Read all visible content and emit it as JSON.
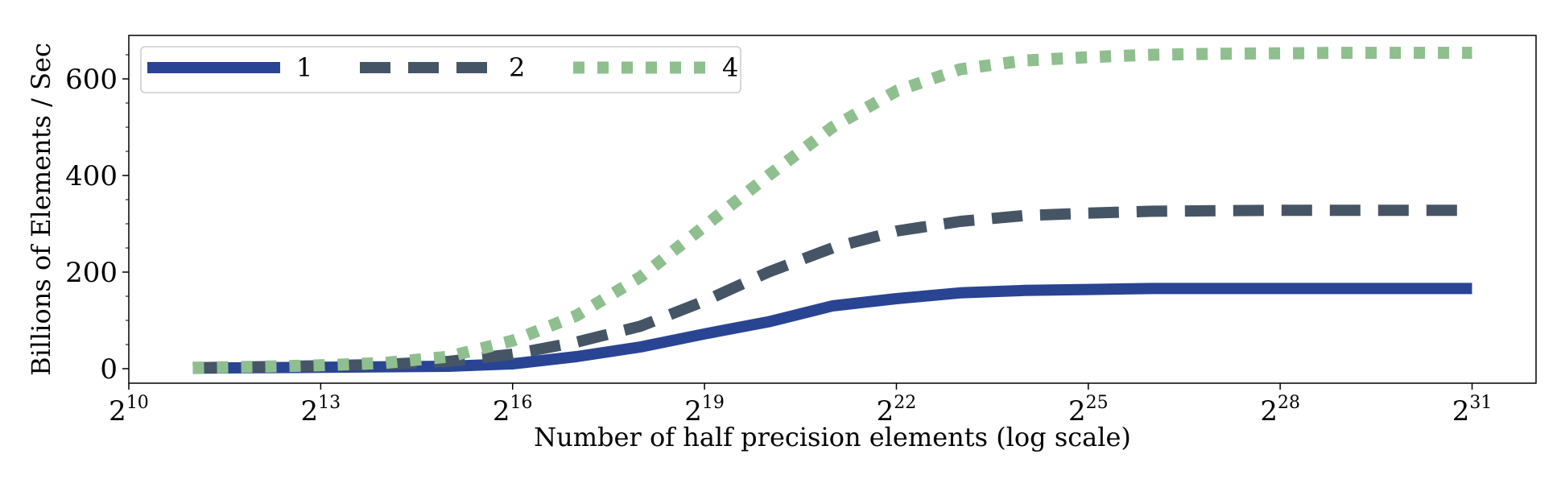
{
  "chart_data": {
    "type": "line",
    "title": "",
    "xlabel": "Number of half precision elements (log scale)",
    "ylabel": "Billions of Elements / Sec",
    "x_scale": "log2",
    "xlim_exp": [
      10,
      32
    ],
    "ylim": [
      -30,
      690
    ],
    "x_ticks": [
      {
        "base": "2",
        "exp": "10",
        "value_exp": 10
      },
      {
        "base": "2",
        "exp": "13",
        "value_exp": 13
      },
      {
        "base": "2",
        "exp": "16",
        "value_exp": 16
      },
      {
        "base": "2",
        "exp": "19",
        "value_exp": 19
      },
      {
        "base": "2",
        "exp": "22",
        "value_exp": 22
      },
      {
        "base": "2",
        "exp": "25",
        "value_exp": 25
      },
      {
        "base": "2",
        "exp": "28",
        "value_exp": 28
      },
      {
        "base": "2",
        "exp": "31",
        "value_exp": 31
      }
    ],
    "y_ticks": [
      {
        "label": "0",
        "value": 0
      },
      {
        "label": "200",
        "value": 200
      },
      {
        "label": "400",
        "value": 400
      },
      {
        "label": "600",
        "value": 600
      }
    ],
    "y_minor_step": 50,
    "grid": false,
    "legend_position": "top-left",
    "x_exp": [
      11,
      12,
      13,
      14,
      15,
      16,
      17,
      18,
      19,
      20,
      21,
      22,
      23,
      24,
      25,
      26,
      27,
      28,
      29,
      30,
      31
    ],
    "series": [
      {
        "name": "1",
        "color": "#2a4494",
        "dash": "solid",
        "values": [
          1,
          2,
          3,
          4,
          5,
          10,
          25,
          45,
          72,
          97,
          130,
          145,
          157,
          162,
          164,
          166,
          166,
          166,
          166,
          166,
          166
        ]
      },
      {
        "name": "2",
        "color": "#465566",
        "dash": "dashed",
        "values": [
          2,
          4,
          6,
          9,
          15,
          30,
          55,
          88,
          140,
          200,
          250,
          285,
          305,
          317,
          322,
          326,
          327,
          328,
          328,
          328,
          328
        ]
      },
      {
        "name": "4",
        "color": "#8fbf8f",
        "dash": "dotted",
        "values": [
          2,
          4,
          7,
          12,
          25,
          58,
          110,
          190,
          295,
          400,
          500,
          575,
          620,
          638,
          645,
          650,
          652,
          653,
          654,
          654,
          654
        ]
      }
    ]
  }
}
